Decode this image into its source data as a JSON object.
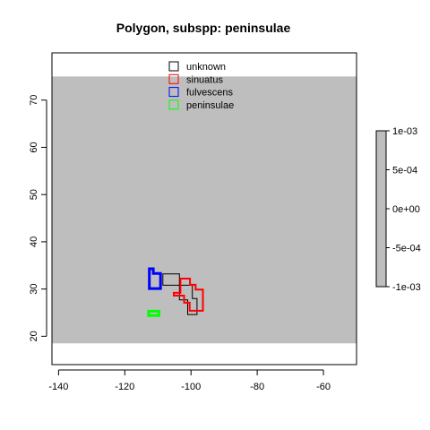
{
  "chart_data": {
    "type": "map",
    "title": "Polygon, subspp: peninsulae",
    "xlabel": "",
    "ylabel": "",
    "xlim": [
      -142,
      -50
    ],
    "ylim": [
      14,
      80
    ],
    "raster_extent": {
      "y": [
        18.5,
        75.0
      ]
    },
    "raster_color": "#bebebe",
    "x_ticks": [
      -140,
      -120,
      -100,
      -80,
      -60
    ],
    "y_ticks": [
      20,
      30,
      40,
      50,
      60,
      70
    ],
    "legend": {
      "position": "top",
      "entries": [
        {
          "name": "unknown",
          "color": "#000000"
        },
        {
          "name": "sinuatus",
          "color": "#ff0000"
        },
        {
          "name": "fulvescens",
          "color": "#0000ff"
        },
        {
          "name": "peninsulae",
          "color": "#00ff00"
        }
      ]
    },
    "colorbar": {
      "ticks": [
        "1e-03",
        "5e-04",
        "0e+00",
        "-5e-04",
        "-1e-03"
      ],
      "fill": "#bebebe"
    },
    "series": [
      {
        "name": "unknown",
        "color": "#000000",
        "stroke_width": 1,
        "points": [
          [
            -108.5,
            30.8
          ],
          [
            -108.5,
            33.2
          ],
          [
            -103.5,
            33.2
          ],
          [
            -103.5,
            27.7
          ],
          [
            -101,
            27.7
          ],
          [
            -101,
            24.6
          ],
          [
            -98.2,
            24.6
          ],
          [
            -98.2,
            28
          ],
          [
            -99.6,
            28
          ],
          [
            -99.6,
            30.8
          ]
        ]
      },
      {
        "name": "sinuatus",
        "color": "#ff0000",
        "stroke_width": 2,
        "points": [
          [
            -105.2,
            29.2
          ],
          [
            -103.2,
            29.2
          ],
          [
            -103.2,
            32.2
          ],
          [
            -100.3,
            32.2
          ],
          [
            -100.3,
            30.9
          ],
          [
            -98.6,
            30.9
          ],
          [
            -98.6,
            29.9
          ],
          [
            -96.4,
            29.9
          ],
          [
            -96.4,
            25.4
          ],
          [
            -100.4,
            25.4
          ],
          [
            -100.4,
            27.1
          ],
          [
            -102.1,
            27.1
          ],
          [
            -102.1,
            28.6
          ],
          [
            -105.2,
            28.6
          ]
        ]
      },
      {
        "name": "fulvescens",
        "color": "#0000ff",
        "stroke_width": 3,
        "points": [
          [
            -112.6,
            30.1
          ],
          [
            -112.6,
            34.3
          ],
          [
            -111.4,
            34.3
          ],
          [
            -111.4,
            33.3
          ],
          [
            -109.2,
            33.3
          ],
          [
            -109.2,
            30.1
          ]
        ]
      },
      {
        "name": "peninsulae",
        "color": "#00ff00",
        "stroke_width": 3,
        "points": [
          [
            -112.8,
            24.4
          ],
          [
            -112.8,
            25.3
          ],
          [
            -109.7,
            25.3
          ],
          [
            -109.7,
            24.4
          ]
        ]
      }
    ]
  }
}
